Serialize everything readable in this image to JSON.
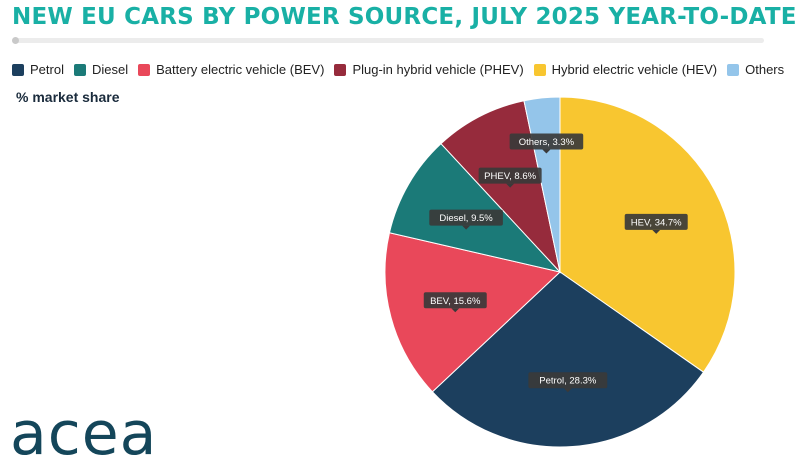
{
  "header": {
    "title": "NEW EU CARS BY POWER SOURCE, JULY 2025 YEAR-TO-DATE",
    "subtitle": "% market share"
  },
  "legend": [
    {
      "label": "Petrol",
      "color": "#1c3f5e"
    },
    {
      "label": "Diesel",
      "color": "#1b7a78"
    },
    {
      "label": "Battery electric vehicle (BEV)",
      "color": "#e9485a"
    },
    {
      "label": "Plug-in hybrid vehicle (PHEV)",
      "color": "#962b3c"
    },
    {
      "label": "Hybrid electric vehicle (HEV)",
      "color": "#f8c630"
    },
    {
      "label": "Others",
      "color": "#94c5ea"
    }
  ],
  "chart_data": {
    "type": "pie",
    "title": "NEW EU CARS BY POWER SOURCE, JULY 2025 YEAR-TO-DATE",
    "unit": "% market share",
    "slices": [
      {
        "name": "HEV",
        "legend": "Hybrid electric vehicle (HEV)",
        "value": 34.7,
        "label": "HEV, 34.7%",
        "color": "#f8c630"
      },
      {
        "name": "Petrol",
        "legend": "Petrol",
        "value": 28.3,
        "label": "Petrol, 28.3%",
        "color": "#1c3f5e"
      },
      {
        "name": "BEV",
        "legend": "Battery electric vehicle (BEV)",
        "value": 15.6,
        "label": "BEV, 15.6%",
        "color": "#e9485a"
      },
      {
        "name": "Diesel",
        "legend": "Diesel",
        "value": 9.5,
        "label": "Diesel, 9.5%",
        "color": "#1b7a78"
      },
      {
        "name": "PHEV",
        "legend": "Plug-in hybrid vehicle (PHEV)",
        "value": 8.6,
        "label": "PHEV, 8.6%",
        "color": "#962b3c"
      },
      {
        "name": "Others",
        "legend": "Others",
        "value": 3.3,
        "label": "Others, 3.3%",
        "color": "#94c5ea"
      }
    ],
    "legend_position": "top"
  },
  "logo": {
    "text": "acea"
  }
}
